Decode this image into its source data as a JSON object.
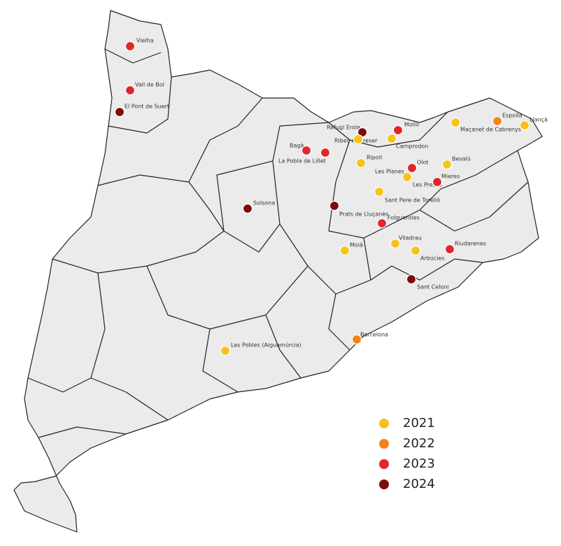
{
  "legend": [
    {
      "label": "2021",
      "color": "#f7c21b"
    },
    {
      "label": "2022",
      "color": "#f08519"
    },
    {
      "label": "2023",
      "color": "#e0262a"
    },
    {
      "label": "2024",
      "color": "#7e0b0b"
    }
  ],
  "places": [
    {
      "name": "Vielha",
      "year": "2023"
    },
    {
      "name": "Vall de Boí",
      "year": "2023"
    },
    {
      "name": "El Pont de Suert",
      "year": "2024"
    },
    {
      "name": "Refugi Erola",
      "year": "2024"
    },
    {
      "name": "Molló",
      "year": "2023"
    },
    {
      "name": "Espolla",
      "year": "2022"
    },
    {
      "name": "Maçanet de Cabrenys",
      "year": "2021"
    },
    {
      "name": "Llançà",
      "year": "2021"
    },
    {
      "name": "Ribes de Freser",
      "year": "2021"
    },
    {
      "name": "Camprodon",
      "year": "2021"
    },
    {
      "name": "Bagà",
      "year": "2023"
    },
    {
      "name": "La Pobla de Lillet",
      "year": "2023"
    },
    {
      "name": "Ripoll",
      "year": "2021"
    },
    {
      "name": "Olot",
      "year": "2023"
    },
    {
      "name": "Besalú",
      "year": "2021"
    },
    {
      "name": "Les Planes"
    },
    {
      "name": "Les Preses",
      "year": "2021"
    },
    {
      "name": "Mieres",
      "year": "2023"
    },
    {
      "name": "Sant Pere de Torelló",
      "year": "2021"
    },
    {
      "name": "Prats de Lluçanès",
      "year": "2024"
    },
    {
      "name": "Solsona",
      "year": "2024"
    },
    {
      "name": "Folgueroles",
      "year": "2023"
    },
    {
      "name": "Viladrau",
      "year": "2021"
    },
    {
      "name": "Moià",
      "year": "2021"
    },
    {
      "name": "Arbúcies",
      "year": "2021"
    },
    {
      "name": "Riudarenes",
      "year": "2023"
    },
    {
      "name": "Sant Celoni",
      "year": "2024"
    },
    {
      "name": "Barcelona",
      "year": "2022"
    },
    {
      "name": "Les Pobles (Aiguamúrcia)",
      "year": "2021"
    }
  ]
}
